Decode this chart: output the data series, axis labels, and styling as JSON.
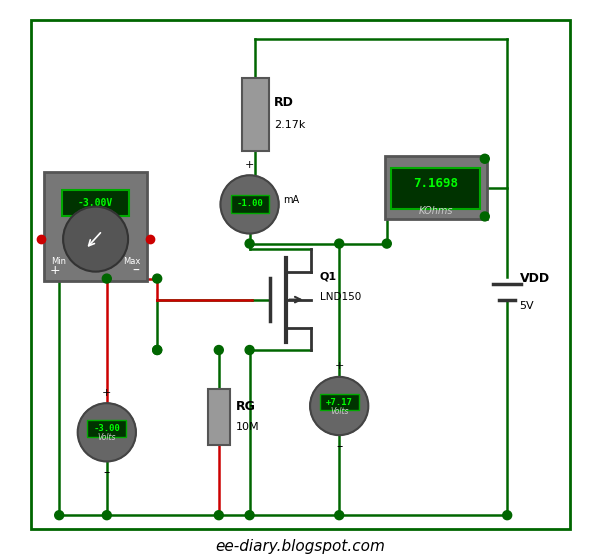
{
  "bg_color": "#ffffff",
  "border_color": "#006600",
  "wire_color": "#006600",
  "red_wire_color": "#cc0000",
  "node_color": "#006600",
  "title": "ee-diary.blogspot.com",
  "title_fontsize": 11,
  "RD_label": "RD",
  "RD_value": "2.17k",
  "RG_label": "RG",
  "RG_value": "10M",
  "Q1_label": "Q1",
  "Q1_value": "LND150",
  "VDD_label": "VDD",
  "VDD_value": "5V",
  "vm_main_value": "-3.00V",
  "ammeter_value": "-1.00",
  "ammeter_unit": "mA",
  "vgs_value": "-3.00",
  "vgs_unit": "Volts",
  "vds_value": "+7.17",
  "vds_unit": "Volts",
  "ohm_value": "7.1698",
  "ohm_unit": "KOhms"
}
